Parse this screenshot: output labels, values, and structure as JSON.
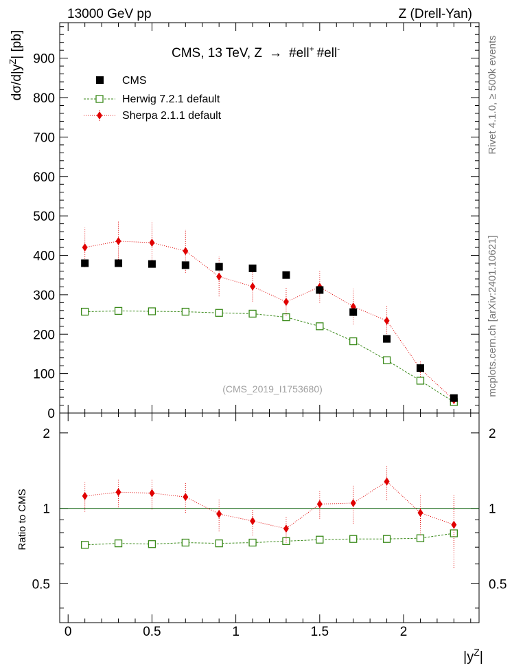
{
  "header": {
    "left": "13000 GeV pp",
    "right": "Z (Drell-Yan)"
  },
  "side": {
    "rivet": "Rivet 4.1.0, ≥ 500k events",
    "mcplots": "mcplots.cern.ch [arXiv:2401.10621]"
  },
  "chart_data": {
    "type": "scatter",
    "title": "CMS, 13 TeV, Z → #ell⁺ #ell⁻",
    "title_parts": {
      "main": "CMS, 13 TeV, Z",
      "arrow": "→",
      "ell1": "#ell",
      "sup1": "+",
      "ell2": "#ell",
      "sup2": "-"
    },
    "watermark": "(CMS_2019_I1753680)",
    "xlabel": "|y^Z|",
    "xlabel_parts": {
      "main": "|y",
      "sup": "Z",
      "end": "|"
    },
    "ylabel": "dσ/d|y^Z| [pb]",
    "ylabel_parts": {
      "main": "dσ/d|y",
      "sup": "Z",
      "end": "| [pb]"
    },
    "ratio_ylabel": "Ratio to CMS",
    "xlim": [
      -0.05,
      2.45
    ],
    "ylim": [
      0,
      990
    ],
    "ratio_ylim": [
      0.35,
      2.4
    ],
    "x_ticks": [
      0,
      0.5,
      1,
      1.5,
      2
    ],
    "x_tick_labels": [
      "0",
      "0.5",
      "1",
      "1.5",
      "2"
    ],
    "y_ticks": [
      0,
      100,
      200,
      300,
      400,
      500,
      600,
      700,
      800,
      900
    ],
    "y_tick_labels": [
      "0",
      "100",
      "200",
      "300",
      "400",
      "500",
      "600",
      "700",
      "800",
      "900"
    ],
    "ratio_ticks": [
      0.5,
      1,
      2
    ],
    "ratio_tick_labels": [
      "0.5",
      "1",
      "2"
    ],
    "x": [
      0.1,
      0.3,
      0.5,
      0.7,
      0.9,
      1.1,
      1.3,
      1.5,
      1.7,
      1.9,
      2.1,
      2.3
    ],
    "series": [
      {
        "name": "CMS",
        "color": "#000000",
        "marker": "square",
        "values": [
          380,
          380,
          378,
          375,
          371,
          367,
          350,
          312,
          256,
          188,
          114,
          38
        ]
      },
      {
        "name": "Herwig 7.2.1 default",
        "color": "#3a8a1a",
        "marker": "open-square",
        "values": [
          257,
          259,
          258,
          257,
          254,
          252,
          243,
          220,
          182,
          134,
          82,
          28
        ],
        "ratio": [
          0.715,
          0.725,
          0.72,
          0.73,
          0.725,
          0.73,
          0.74,
          0.75,
          0.755,
          0.755,
          0.76,
          0.795
        ],
        "ratio_err": [
          0.006,
          0.006,
          0.006,
          0.006,
          0.006,
          0.006,
          0.006,
          0.006,
          0.006,
          0.006,
          0.006,
          0.01
        ]
      },
      {
        "name": "Sherpa 2.1.1 default",
        "color": "#e00000",
        "marker": "diamond",
        "values": [
          420,
          436,
          432,
          411,
          346,
          321,
          282,
          320,
          270,
          234,
          112,
          33
        ],
        "errors": [
          50,
          52,
          55,
          55,
          50,
          38,
          35,
          40,
          45,
          38,
          20,
          10
        ],
        "ratio": [
          1.12,
          1.16,
          1.15,
          1.11,
          0.95,
          0.89,
          0.83,
          1.04,
          1.05,
          1.28,
          0.96,
          0.86
        ],
        "ratio_err": [
          0.15,
          0.15,
          0.16,
          0.15,
          0.14,
          0.11,
          0.1,
          0.13,
          0.18,
          0.2,
          0.18,
          0.28
        ]
      }
    ]
  }
}
